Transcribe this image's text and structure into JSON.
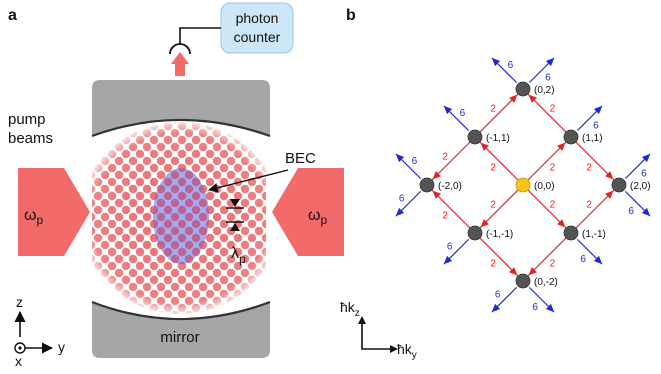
{
  "panel_a": {
    "panel_label": "a",
    "photon_counter": {
      "line1": "photon",
      "line2": "counter"
    },
    "pump_label": {
      "line1": "pump",
      "line2": "beams"
    },
    "omega": {
      "symbol": "ω",
      "subscript": "p"
    },
    "bec_label": "BEC",
    "lambda": {
      "symbol": "λ",
      "subscript": "p"
    },
    "mirror_label": "mirror",
    "axes": {
      "z": "z",
      "y": "y",
      "x": "x"
    },
    "colors": {
      "pump": "#f26a6a",
      "mirror": "#a0a0a0",
      "bec": "#7f8cf0",
      "counter_box": "#cde7f8"
    }
  },
  "panel_b": {
    "panel_label": "b",
    "axes": {
      "vertical": "ħk",
      "vertical_sub": "z",
      "horizontal": "ħk",
      "horizontal_sub": "y"
    },
    "nodes": [
      {
        "label": "(0,0)",
        "i": 0,
        "j": 0,
        "origin": true
      },
      {
        "label": "(1,1)",
        "i": 1,
        "j": 1
      },
      {
        "label": "(-1,1)",
        "i": -1,
        "j": 1
      },
      {
        "label": "(-1,-1)",
        "i": -1,
        "j": -1
      },
      {
        "label": "(1,-1)",
        "i": 1,
        "j": -1
      },
      {
        "label": "(0,2)",
        "i": 0,
        "j": 2
      },
      {
        "label": "(-2,0)",
        "i": -2,
        "j": 0
      },
      {
        "label": "(2,0)",
        "i": 2,
        "j": 0
      },
      {
        "label": "(0,-2)",
        "i": 0,
        "j": -2
      }
    ],
    "red_edge_label": "2",
    "blue_edge_label": "6",
    "colors": {
      "node": "#555555",
      "origin": "#f5c518",
      "red": "#e32222",
      "blue": "#1e28d8"
    }
  }
}
